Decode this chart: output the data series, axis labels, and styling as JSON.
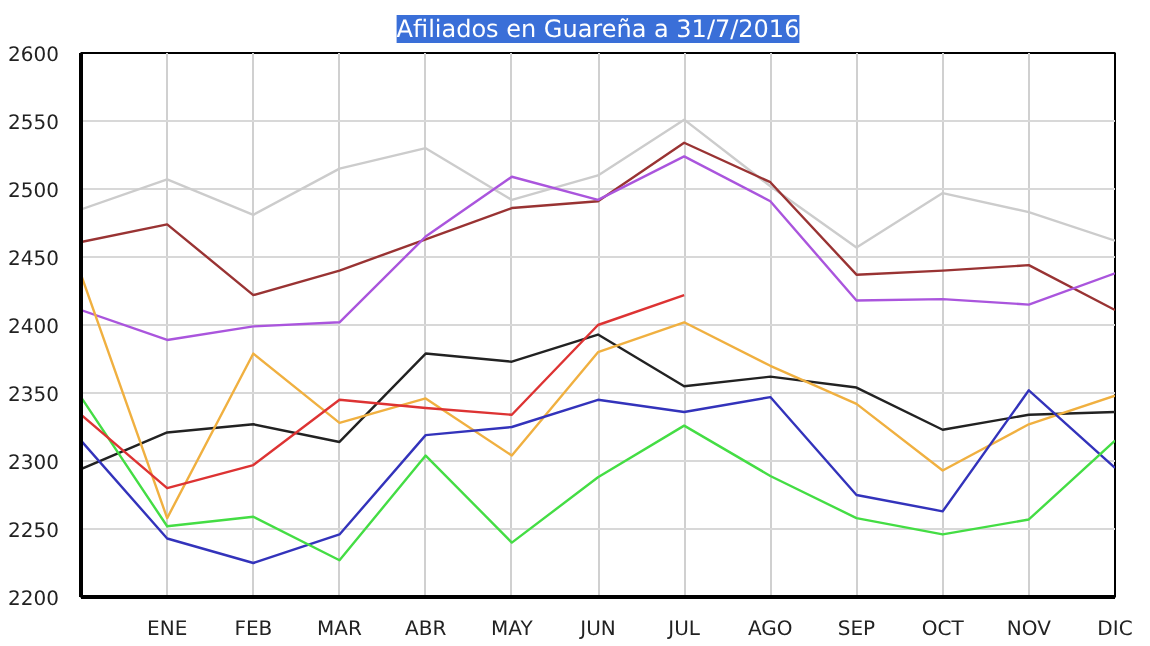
{
  "chart_data": {
    "type": "line",
    "title": "Afiliados en Guareña a 31/7/2016",
    "categories": [
      null,
      "ENE",
      "FEB",
      "MAR",
      "ABR",
      "MAY",
      "JUN",
      "JUL",
      "AGO",
      "SEP",
      "OCT",
      "NOV",
      "DIC"
    ],
    "series": [
      {
        "color": "#cccccc",
        "values": [
          2485,
          2507,
          2481,
          2515,
          2530,
          2492,
          2510,
          2551,
          2502,
          2457,
          2497,
          2483,
          2462
        ]
      },
      {
        "color": "#993333",
        "values": [
          2461,
          2474,
          2422,
          2440,
          2463,
          2486,
          2491,
          2534,
          2505,
          2437,
          2440,
          2444,
          2411
        ]
      },
      {
        "color": "#aa55dd",
        "values": [
          2411,
          2389,
          2399,
          2402,
          2465,
          2509,
          2492,
          2524,
          2491,
          2418,
          2419,
          2415,
          2438
        ]
      },
      {
        "color": "#222222",
        "values": [
          2294,
          2321,
          2327,
          2314,
          2379,
          2373,
          2393,
          2355,
          2362,
          2354,
          2323,
          2334,
          2336
        ]
      },
      {
        "color": "#f0b040",
        "values": [
          2437,
          2258,
          2379,
          2328,
          2346,
          2304,
          2380,
          2402,
          2370,
          2342,
          2293,
          2327,
          2348
        ]
      },
      {
        "color": "#3333bb",
        "values": [
          2315,
          2243,
          2225,
          2246,
          2319,
          2325,
          2345,
          2336,
          2347,
          2275,
          2263,
          2352,
          2295
        ]
      },
      {
        "color": "#44dd44",
        "values": [
          2347,
          2252,
          2259,
          2227,
          2304,
          2240,
          2288,
          2326,
          2289,
          2258,
          2246,
          2257,
          2315
        ]
      },
      {
        "color": "#dd3333",
        "values": [
          2334,
          2280,
          2297,
          2345,
          2339,
          2334,
          2400,
          2422,
          null,
          null,
          null,
          null,
          null
        ]
      }
    ],
    "ylim": [
      2200,
      2600
    ],
    "yticks": [
      2200,
      2250,
      2300,
      2350,
      2400,
      2450,
      2500,
      2550,
      2600
    ],
    "grid": true,
    "marker": "none",
    "line_style": "solid"
  }
}
